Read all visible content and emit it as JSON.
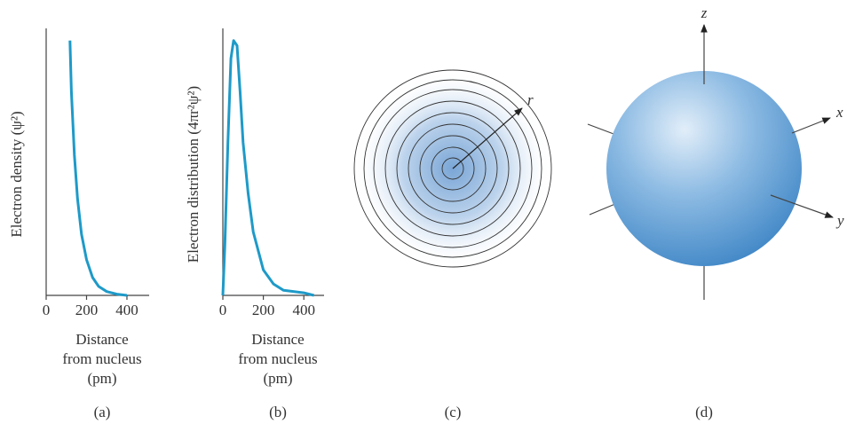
{
  "chart_data": [
    {
      "type": "line",
      "caption": "(a)",
      "ylabel": "Electron density (ψ²)",
      "xlabel": [
        "Distance",
        "from nucleus",
        "(pm)"
      ],
      "x": [
        118,
        125,
        140,
        155,
        175,
        200,
        230,
        260,
        300,
        350,
        400
      ],
      "values": [
        1.0,
        0.8,
        0.55,
        0.38,
        0.24,
        0.14,
        0.07,
        0.035,
        0.015,
        0.005,
        0
      ],
      "color": "#1e9ac8",
      "xlim": [
        0,
        510
      ],
      "ylim": [
        0,
        1.02
      ],
      "xticks": [
        0,
        200,
        400
      ]
    },
    {
      "type": "line",
      "caption": "(b)",
      "ylabel": "Electron distribution (4πr²ψ²)",
      "xlabel": [
        "Distance",
        "from nucleus",
        "(pm)"
      ],
      "x": [
        0,
        10,
        25,
        40,
        53,
        70,
        85,
        100,
        125,
        150,
        200,
        250,
        300,
        400,
        450
      ],
      "values": [
        0,
        0.2,
        0.6,
        0.93,
        1.0,
        0.98,
        0.8,
        0.6,
        0.4,
        0.25,
        0.1,
        0.045,
        0.02,
        0.01,
        0
      ],
      "color": "#1e9ac8",
      "xlim": [
        0,
        500
      ],
      "ylim": [
        0,
        1.02
      ],
      "xticks": [
        0,
        200,
        400
      ]
    }
  ],
  "diagrams": {
    "c": {
      "caption": "(c)",
      "radius_label": "r"
    },
    "d": {
      "caption": "(d)",
      "x_label": "x",
      "y_label": "y",
      "z_label": "z"
    }
  }
}
